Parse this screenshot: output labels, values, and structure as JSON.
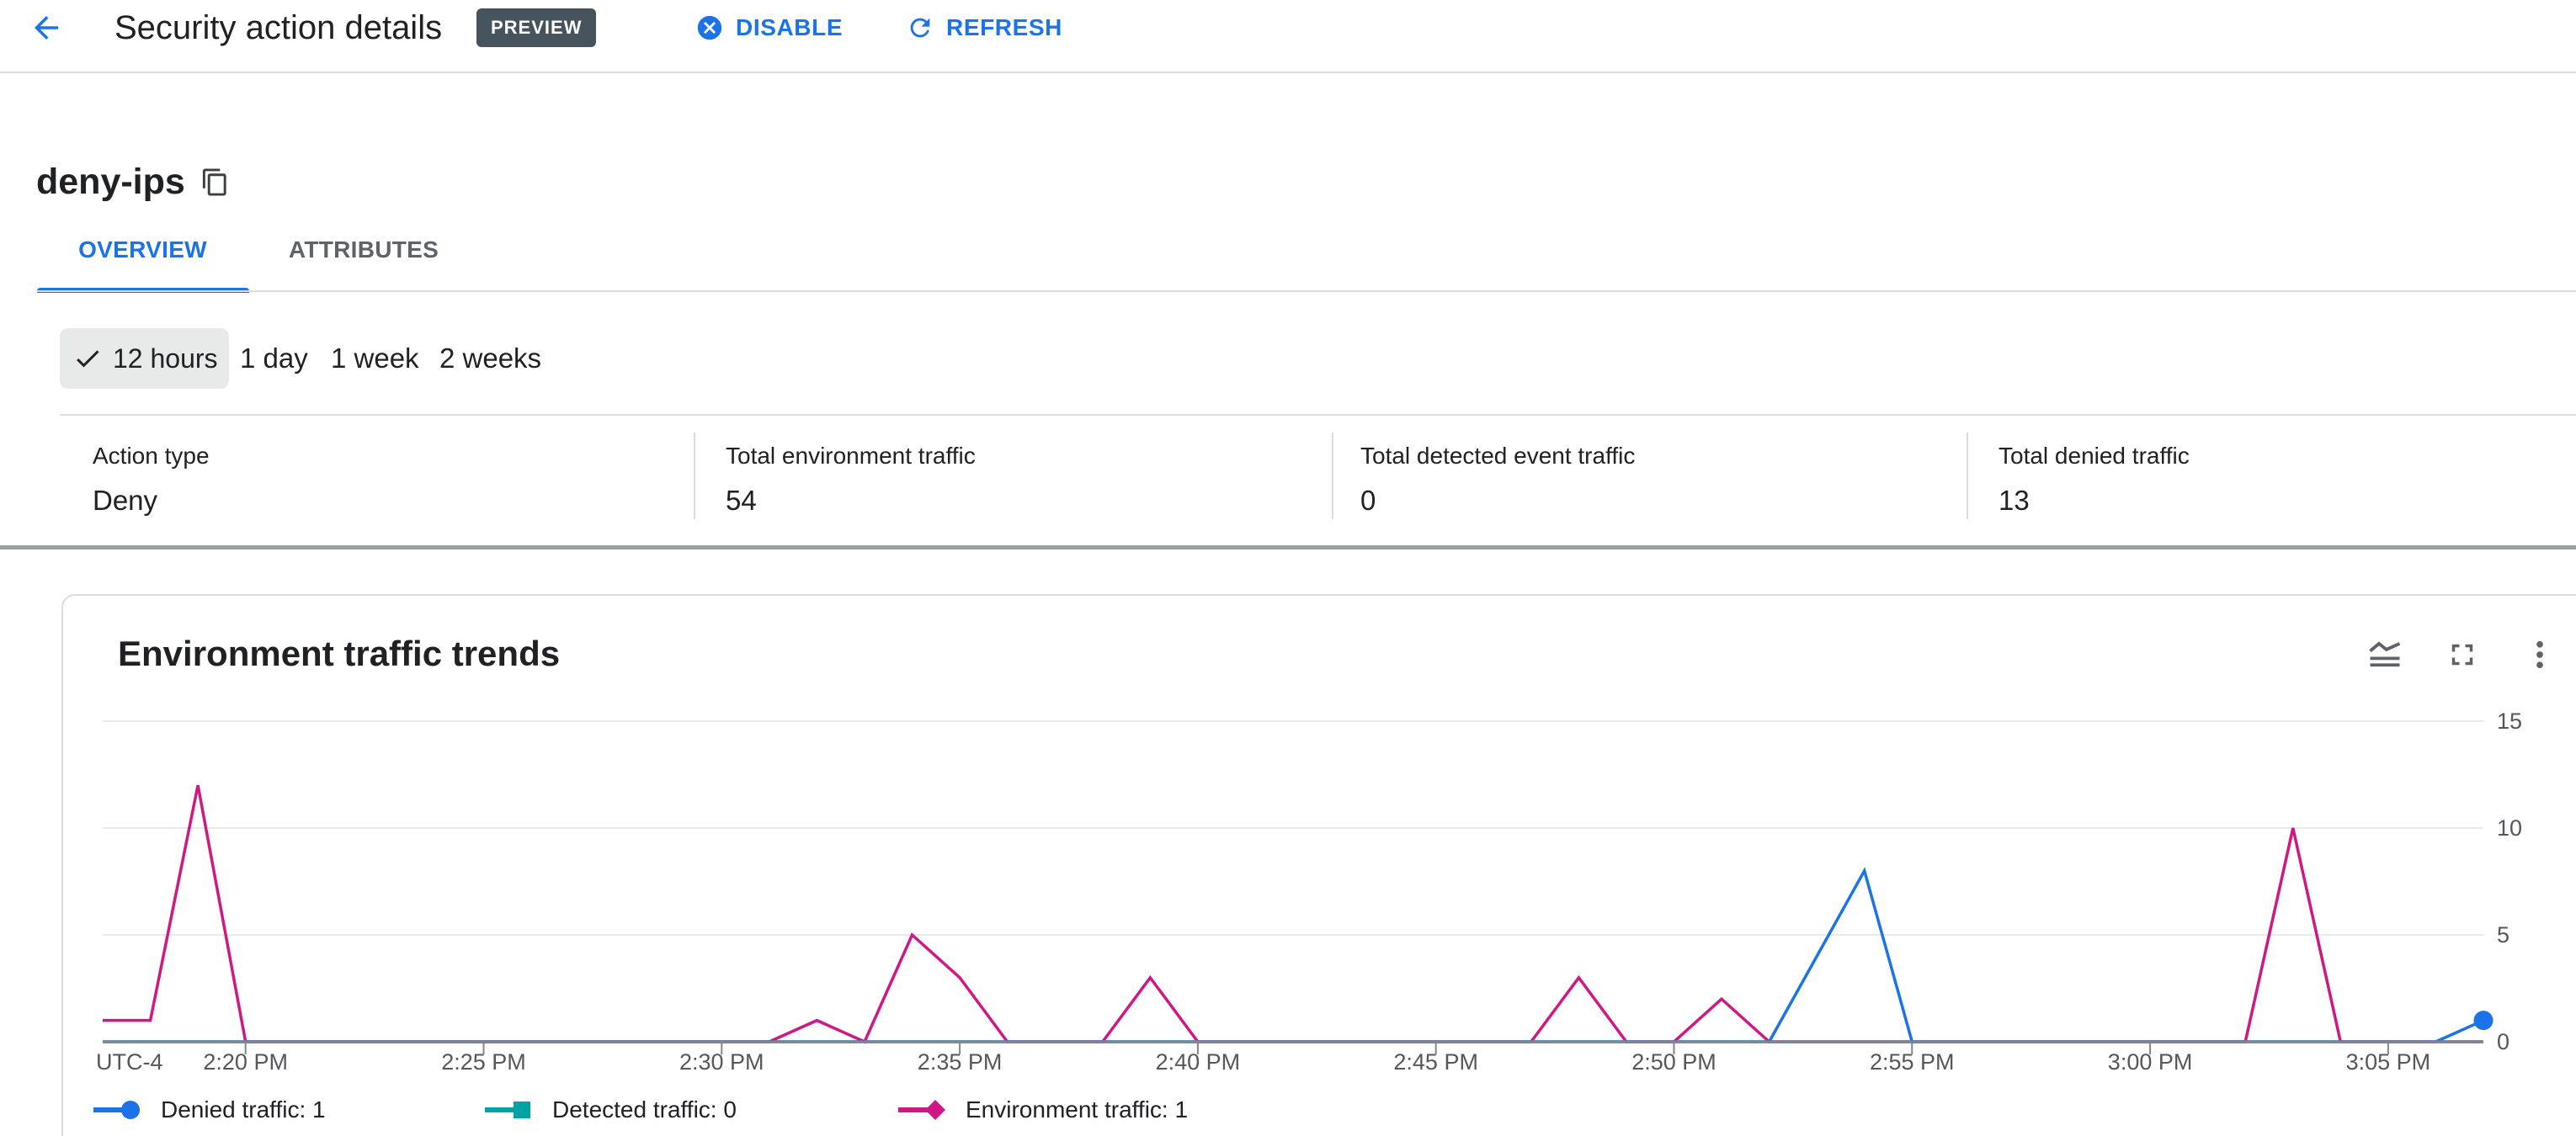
{
  "header": {
    "title": "Security action details",
    "preview_badge": "PREVIEW",
    "disable_label": "DISABLE",
    "refresh_label": "REFRESH"
  },
  "entity": {
    "name": "deny-ips"
  },
  "tabs": {
    "overview": "OVERVIEW",
    "attributes": "ATTRIBUTES",
    "active": "OVERVIEW"
  },
  "time_filters": [
    {
      "label": "12 hours",
      "selected": true
    },
    {
      "label": "1 day",
      "selected": false
    },
    {
      "label": "1 week",
      "selected": false
    },
    {
      "label": "2 weeks",
      "selected": false
    }
  ],
  "stats": [
    {
      "label": "Action type",
      "value": "Deny"
    },
    {
      "label": "Total environment traffic",
      "value": "54"
    },
    {
      "label": "Total detected event traffic",
      "value": "0"
    },
    {
      "label": "Total denied traffic",
      "value": "13"
    }
  ],
  "colors": {
    "accent": "#1a73e8",
    "preview_badge_bg": "#46535d"
  },
  "chart_data": {
    "type": "line",
    "title": "Environment traffic trends",
    "utc_label": "UTC-4",
    "x_start_time": "2:17 PM",
    "x_end_time": "3:07 PM",
    "x_step_minutes": 1,
    "x_ticks": [
      {
        "i": 3,
        "label": "2:20 PM"
      },
      {
        "i": 8,
        "label": "2:25 PM"
      },
      {
        "i": 13,
        "label": "2:30 PM"
      },
      {
        "i": 18,
        "label": "2:35 PM"
      },
      {
        "i": 23,
        "label": "2:40 PM"
      },
      {
        "i": 28,
        "label": "2:45 PM"
      },
      {
        "i": 33,
        "label": "2:50 PM"
      },
      {
        "i": 38,
        "label": "2:55 PM"
      },
      {
        "i": 43,
        "label": "3:00 PM"
      },
      {
        "i": 48,
        "label": "3:05 PM"
      }
    ],
    "ylim": [
      0,
      15
    ],
    "yticks": [
      0,
      5,
      10,
      15
    ],
    "y_axis_side": "right",
    "legend_position": "bottom",
    "series": [
      {
        "name": "Denied traffic",
        "color": "#1a73e8",
        "marker": "circle",
        "end_dot": true,
        "values": [
          0,
          0,
          0,
          0,
          0,
          0,
          0,
          0,
          0,
          0,
          0,
          0,
          0,
          0,
          0,
          0,
          0,
          0,
          0,
          0,
          0,
          0,
          0,
          0,
          0,
          0,
          0,
          0,
          0,
          0,
          0,
          0,
          0,
          0,
          0,
          0,
          4,
          8,
          0,
          0,
          0,
          0,
          0,
          0,
          0,
          0,
          0,
          0,
          0,
          0,
          1
        ]
      },
      {
        "name": "Detected traffic",
        "color": "#00a3a3",
        "marker": "square",
        "end_dot": false,
        "values": [
          0,
          0,
          0,
          0,
          0,
          0,
          0,
          0,
          0,
          0,
          0,
          0,
          0,
          0,
          0,
          0,
          0,
          0,
          0,
          0,
          0,
          0,
          0,
          0,
          0,
          0,
          0,
          0,
          0,
          0,
          0,
          0,
          0,
          0,
          0,
          0,
          0,
          0,
          0,
          0,
          0,
          0,
          0,
          0,
          0,
          0,
          0,
          0,
          0,
          0,
          0
        ]
      },
      {
        "name": "Environment traffic",
        "color": "#d01884",
        "marker": "diamond",
        "end_dot": false,
        "values": [
          1,
          1,
          12,
          0,
          0,
          0,
          0,
          0,
          0,
          0,
          0,
          0,
          0,
          0,
          0,
          1,
          0,
          5,
          3,
          0,
          0,
          0,
          3,
          0,
          0,
          0,
          0,
          0,
          0,
          0,
          0,
          3,
          0,
          0,
          2,
          0,
          0,
          0,
          0,
          0,
          0,
          0,
          0,
          0,
          0,
          0,
          10,
          0,
          0,
          0,
          0
        ]
      }
    ],
    "legend": [
      {
        "label": "Denied traffic: 1"
      },
      {
        "label": "Detected traffic: 0"
      },
      {
        "label": "Environment traffic: 1"
      }
    ]
  }
}
